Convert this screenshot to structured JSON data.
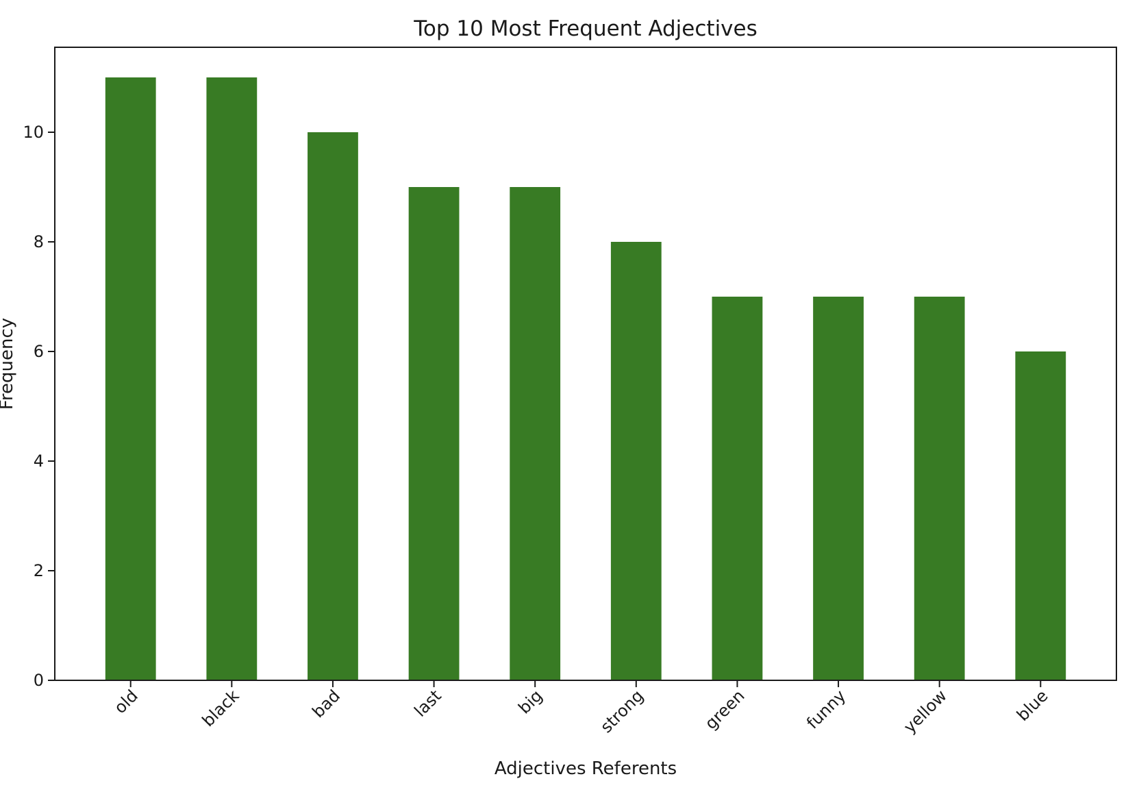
{
  "chart_data": {
    "type": "bar",
    "title": "Top 10 Most Frequent Adjectives",
    "xlabel": "Adjectives Referents",
    "ylabel": "Frequency",
    "categories": [
      "old",
      "black",
      "bad",
      "last",
      "big",
      "strong",
      "green",
      "funny",
      "yellow",
      "blue"
    ],
    "values": [
      11,
      11,
      10,
      9,
      9,
      8,
      7,
      7,
      7,
      6
    ],
    "ylim": [
      0,
      11.55
    ],
    "yticks": [
      0,
      2,
      4,
      6,
      8,
      10
    ],
    "bar_color": "#387b24",
    "grid": false,
    "legend": "none"
  }
}
